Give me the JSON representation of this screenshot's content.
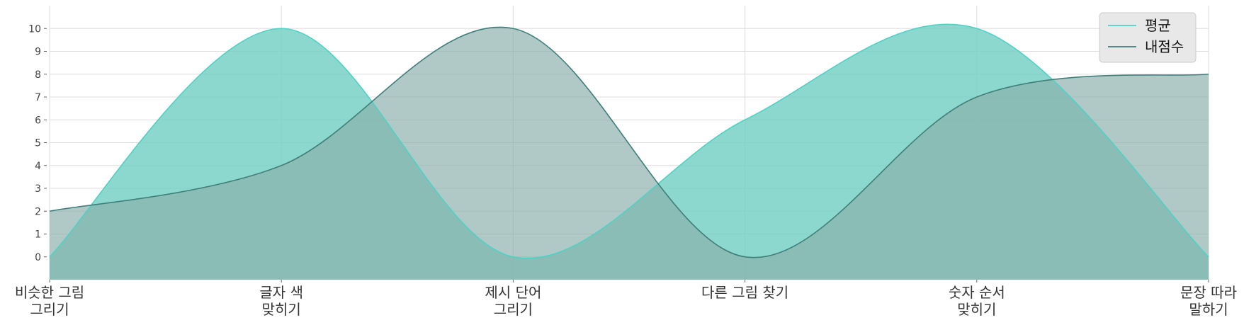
{
  "chart_data": {
    "type": "area",
    "title": "",
    "xlabel": "",
    "ylabel": "",
    "categories": [
      [
        "비슷한 그림",
        "그리기"
      ],
      [
        "글자 색",
        "맞히기"
      ],
      [
        "제시 단어",
        "그리기"
      ],
      [
        "다른 그림 찾기"
      ],
      [
        "숫자 순서",
        "맞히기"
      ],
      [
        "문장 따라",
        "말하기"
      ]
    ],
    "series": [
      {
        "name": "평균",
        "values": [
          0.0,
          10.0,
          0.0,
          6.0,
          10.0,
          0.0
        ],
        "line_color": "#4fd1c5",
        "fill_color": "#73cfc4",
        "fill_opacity": 0.82
      },
      {
        "name": "내점수",
        "values": [
          2.0,
          4.0,
          10.0,
          0.0,
          7.0,
          8.0
        ],
        "line_color": "#3f7f7b",
        "fill_color": "#8ab0ab",
        "fill_opacity": 0.68
      }
    ],
    "ylim": [
      -1,
      11
    ],
    "yticks": [
      0,
      1,
      2,
      3,
      4,
      5,
      6,
      7,
      8,
      9,
      10
    ],
    "grid": true,
    "legend_position": "top-right",
    "background": "#ffffff",
    "grid_color": "#dddddd",
    "legend_bg": "#e8e8e8",
    "legend_border": "#cccccc"
  }
}
